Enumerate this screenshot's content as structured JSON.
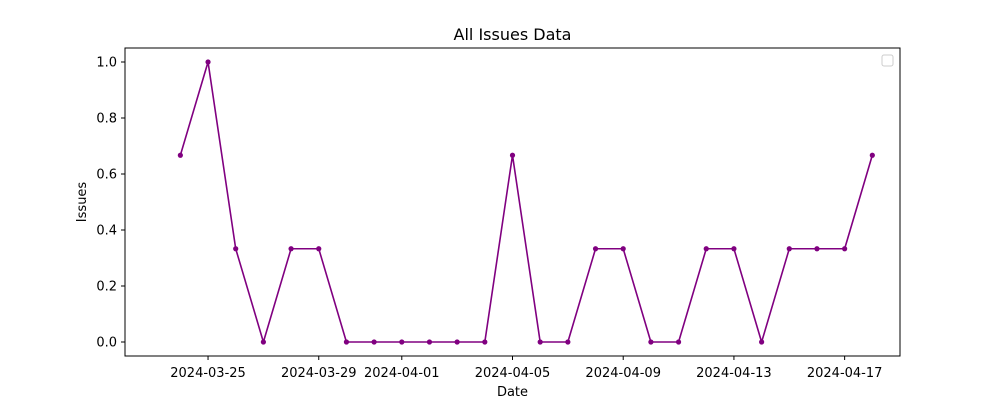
{
  "chart_data": {
    "type": "line",
    "title": "All Issues Data",
    "xlabel": "Date",
    "ylabel": "Issues",
    "x_ticks": [
      "2024-03-25",
      "2024-03-29",
      "2024-04-01",
      "2024-04-05",
      "2024-04-09",
      "2024-04-13",
      "2024-04-17"
    ],
    "y_ticks": [
      "0.0",
      "0.2",
      "0.4",
      "0.6",
      "0.8",
      "1.0"
    ],
    "xlim": [
      "2024-03-22",
      "2024-04-19"
    ],
    "ylim": [
      -0.05,
      1.05
    ],
    "grid": false,
    "legend": "top-right",
    "series_color": "#800080",
    "series": [
      {
        "x": [
          "2024-03-24",
          "2024-03-25",
          "2024-03-26",
          "2024-03-27",
          "2024-03-28",
          "2024-03-29",
          "2024-03-30",
          "2024-03-31",
          "2024-04-01",
          "2024-04-02",
          "2024-04-03",
          "2024-04-04",
          "2024-04-05",
          "2024-04-06",
          "2024-04-07",
          "2024-04-08",
          "2024-04-09",
          "2024-04-10",
          "2024-04-11",
          "2024-04-12",
          "2024-04-13",
          "2024-04-14",
          "2024-04-15",
          "2024-04-16",
          "2024-04-17",
          "2024-04-18"
        ],
        "values": [
          0.667,
          1.0,
          0.333,
          0.0,
          0.333,
          0.333,
          0.0,
          0.0,
          0.0,
          0.0,
          0.0,
          0.0,
          0.667,
          0.0,
          0.0,
          0.333,
          0.333,
          0.0,
          0.0,
          0.333,
          0.333,
          0.0,
          0.333,
          0.333,
          0.333,
          0.667
        ]
      }
    ]
  }
}
